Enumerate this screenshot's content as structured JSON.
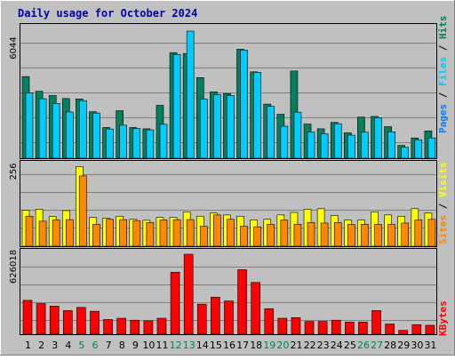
{
  "title": "Daily usage for October 2024",
  "colors": {
    "background": "#c0c0c0",
    "grid": "#808080",
    "title": "#0000aa",
    "hits": "#00805c",
    "files": "#00ccff",
    "pages": "#0080ff",
    "sites": "#ff8800",
    "visits": "#ffff00",
    "kbytes": "#ff0000",
    "weekday_label": "#000000",
    "weekend_label": "#00805c"
  },
  "chart_data": [
    {
      "type": "bar",
      "panel": "hits-files-pages",
      "ymax_label": "6044",
      "ylim": [
        0,
        6044
      ],
      "legend": [
        "Pages",
        "Files",
        "Hits"
      ],
      "categories": [
        "1",
        "2",
        "3",
        "4",
        "5",
        "6",
        "7",
        "8",
        "9",
        "10",
        "11",
        "12",
        "13",
        "14",
        "15",
        "16",
        "17",
        "18",
        "19",
        "20",
        "21",
        "22",
        "23",
        "24",
        "25",
        "26",
        "27",
        "28",
        "29",
        "30",
        "31"
      ],
      "weekend_days": [
        "5",
        "6",
        "12",
        "13",
        "19",
        "20",
        "26",
        "27"
      ],
      "series": [
        {
          "name": "Hits",
          "values": [
            3830,
            3140,
            2940,
            2800,
            2780,
            2180,
            1440,
            2230,
            1440,
            1380,
            2480,
            4950,
            4910,
            3780,
            3110,
            3030,
            5110,
            4050,
            2540,
            2060,
            4090,
            1600,
            1380,
            1680,
            1190,
            1930,
            1960,
            1480,
            600,
            950,
            1280
          ]
        },
        {
          "name": "Files",
          "values": [
            3060,
            2790,
            2570,
            2170,
            2700,
            2120,
            1370,
            1550,
            1390,
            1330,
            1590,
            4860,
            5960,
            2780,
            2990,
            2940,
            5070,
            4030,
            2430,
            1500,
            2160,
            1230,
            1150,
            1620,
            1080,
            1220,
            1900,
            1240,
            510,
            860,
            950
          ]
        }
      ]
    },
    {
      "type": "bar",
      "panel": "sites-visits",
      "ymax_label": "256",
      "ylim": [
        0,
        256
      ],
      "legend": [
        "Sites",
        "Visits"
      ],
      "categories": [
        "1",
        "2",
        "3",
        "4",
        "5",
        "6",
        "7",
        "8",
        "9",
        "10",
        "11",
        "12",
        "13",
        "14",
        "15",
        "16",
        "17",
        "18",
        "19",
        "20",
        "21",
        "22",
        "23",
        "24",
        "25",
        "26",
        "27",
        "28",
        "29",
        "30",
        "31"
      ],
      "series": [
        {
          "name": "Visits",
          "values": [
            115,
            118,
            95,
            114,
            255,
            92,
            90,
            96,
            86,
            83,
            92,
            92,
            110,
            96,
            106,
            100,
            96,
            84,
            86,
            100,
            108,
            118,
            120,
            98,
            84,
            84,
            110,
            100,
            96,
            120,
            106
          ]
        },
        {
          "name": "Sites",
          "values": [
            96,
            80,
            84,
            85,
            225,
            70,
            86,
            85,
            82,
            76,
            84,
            85,
            85,
            64,
            100,
            86,
            64,
            62,
            70,
            84,
            70,
            76,
            74,
            76,
            70,
            70,
            70,
            70,
            74,
            84,
            86
          ]
        }
      ]
    },
    {
      "type": "bar",
      "panel": "kbytes",
      "ymax_label": "626018",
      "ylim": [
        0,
        626018
      ],
      "legend": [
        "KBytes"
      ],
      "categories": [
        "1",
        "2",
        "3",
        "4",
        "5",
        "6",
        "7",
        "8",
        "9",
        "10",
        "11",
        "12",
        "13",
        "14",
        "15",
        "16",
        "17",
        "18",
        "19",
        "20",
        "21",
        "22",
        "23",
        "24",
        "25",
        "26",
        "27",
        "28",
        "29",
        "30",
        "31"
      ],
      "series": [
        {
          "name": "KBytes",
          "values": [
            265000,
            240000,
            220000,
            185000,
            210000,
            180000,
            115000,
            125000,
            110000,
            105000,
            125000,
            485000,
            626000,
            235000,
            290000,
            260000,
            505000,
            405000,
            200000,
            125000,
            130000,
            100000,
            100000,
            110000,
            95000,
            95000,
            185000,
            80000,
            30000,
            75000,
            70000
          ]
        }
      ]
    }
  ]
}
